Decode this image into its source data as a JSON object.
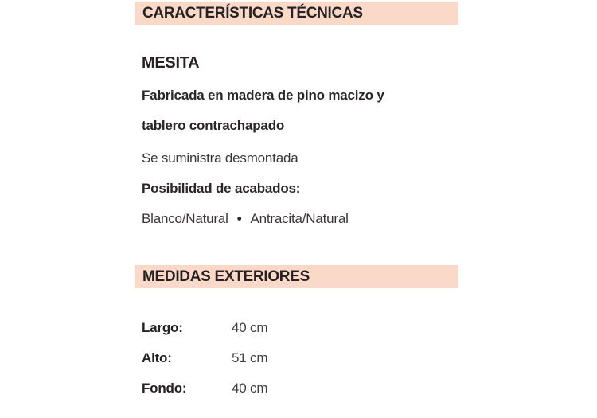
{
  "page": {
    "background_color": "#ffffff",
    "accent_bar_color": "#fbd9c8",
    "text_color": "#2b2727"
  },
  "section_technical": {
    "header": "CARACTERÍSTICAS TÉCNICAS",
    "product_name": "MESITA",
    "description_line1": "Fabricada en madera de pino macizo y",
    "description_line2": "tablero contrachapado",
    "assembly_note": "Se suministra desmontada",
    "finishes_label": "Posibilidad de acabados:",
    "finishes": {
      "option1": "Blanco/Natural",
      "separator": "•",
      "option2": "Antracita/Natural"
    }
  },
  "section_measurements": {
    "header": "MEDIDAS EXTERIORES",
    "rows": [
      {
        "label": "Largo:",
        "value": "40 cm"
      },
      {
        "label": "Alto:",
        "value": "51 cm"
      },
      {
        "label": "Fondo:",
        "value": "40 cm"
      }
    ]
  }
}
